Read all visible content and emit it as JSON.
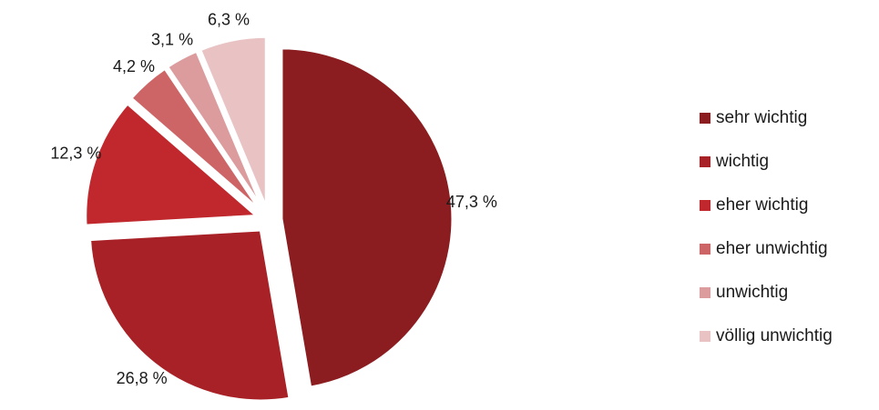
{
  "chart_data": {
    "type": "pie",
    "title": "",
    "slices": [
      {
        "label": "sehr wichtig",
        "value": 47.3,
        "value_label": "47,3 %",
        "color": "#8b1c1f"
      },
      {
        "label": "wichtig",
        "value": 26.8,
        "value_label": "26,8 %",
        "color": "#a82126"
      },
      {
        "label": "eher wichtig",
        "value": 12.3,
        "value_label": "12,3 %",
        "color": "#c0282d"
      },
      {
        "label": "eher unwichtig",
        "value": 4.2,
        "value_label": "4,2 %",
        "color": "#cd6466"
      },
      {
        "label": "unwichtig",
        "value": 3.1,
        "value_label": "3,1 %",
        "color": "#dc9c9e"
      },
      {
        "label": "völlig unwichtig",
        "value": 6.3,
        "value_label": "6,3 %",
        "color": "#e9c3c4"
      }
    ],
    "legend_position": "right",
    "exploded": true
  }
}
